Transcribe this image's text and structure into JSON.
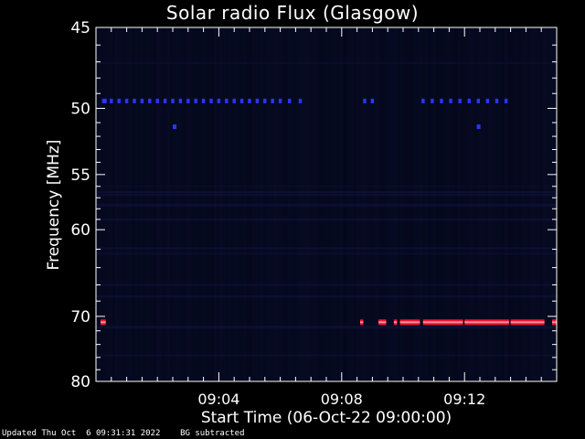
{
  "chart_data": {
    "type": "heatmap",
    "title": "Solar radio Flux (Glasgow)",
    "xlabel": "Start Time (06-Oct-22 09:00:00)",
    "ylabel": "Frequency [MHz]",
    "x_unit": "minutes after 09:00",
    "xlim": [
      0,
      15
    ],
    "x_ticks": [
      {
        "value": 4,
        "label": "09:04"
      },
      {
        "value": 8,
        "label": "09:08"
      },
      {
        "value": 12,
        "label": "09:12"
      }
    ],
    "ylim": [
      45,
      80
    ],
    "y_scale": "reciprocal",
    "y_ticks": [
      45,
      50,
      55,
      60,
      70,
      80
    ],
    "background_color": "#05081c",
    "features": [
      {
        "name": "dashed-line-49.5MHz",
        "freq": 49.5,
        "color": "#2a35ff",
        "segments": [
          [
            0.2,
            0.35
          ],
          [
            0.45,
            0.55
          ],
          [
            0.7,
            0.8
          ],
          [
            0.95,
            1.05
          ],
          [
            1.2,
            1.3
          ],
          [
            1.45,
            1.55
          ],
          [
            1.7,
            1.8
          ],
          [
            1.95,
            2.05
          ],
          [
            2.2,
            2.3
          ],
          [
            2.45,
            2.55
          ],
          [
            2.7,
            2.8
          ],
          [
            2.95,
            3.05
          ],
          [
            3.2,
            3.3
          ],
          [
            3.45,
            3.55
          ],
          [
            3.7,
            3.8
          ],
          [
            3.95,
            4.05
          ],
          [
            4.2,
            4.3
          ],
          [
            4.45,
            4.55
          ],
          [
            4.7,
            4.8
          ],
          [
            4.95,
            5.05
          ],
          [
            5.2,
            5.3
          ],
          [
            5.45,
            5.55
          ],
          [
            5.7,
            5.8
          ],
          [
            5.95,
            6.05
          ],
          [
            6.25,
            6.35
          ],
          [
            6.6,
            6.7
          ],
          [
            8.7,
            8.8
          ],
          [
            8.95,
            9.05
          ],
          [
            10.6,
            10.7
          ],
          [
            10.9,
            11.0
          ],
          [
            11.2,
            11.3
          ],
          [
            11.5,
            11.6
          ],
          [
            11.8,
            11.9
          ],
          [
            12.1,
            12.2
          ],
          [
            12.4,
            12.5
          ],
          [
            12.7,
            12.8
          ],
          [
            13.0,
            13.1
          ],
          [
            13.3,
            13.4
          ]
        ]
      },
      {
        "name": "marker-51.3MHz",
        "freq": 51.3,
        "color": "#2a35ff",
        "segments": [
          [
            2.5,
            2.62
          ],
          [
            12.4,
            12.52
          ]
        ]
      },
      {
        "name": "interference-70.8MHz",
        "freq": 70.8,
        "color": "#ff1030",
        "segments": [
          [
            0.15,
            0.32
          ],
          [
            8.6,
            8.7
          ],
          [
            9.2,
            9.45
          ],
          [
            9.7,
            9.8
          ],
          [
            9.9,
            10.55
          ],
          [
            10.65,
            11.95
          ],
          [
            12.0,
            13.45
          ],
          [
            13.5,
            14.6
          ],
          [
            14.85,
            15.0
          ]
        ]
      }
    ]
  },
  "footer": {
    "updated": "Updated Thu Oct  6 09:31:31 2022",
    "note": "BG subtracted"
  }
}
